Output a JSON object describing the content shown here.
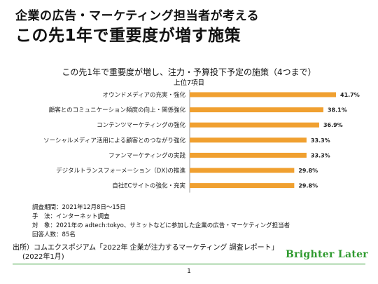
{
  "heading": {
    "line1": "企業の広告・マーケティング担当者が考える",
    "line2": "この先1年で重要度が増す施策"
  },
  "chart_data": {
    "type": "bar",
    "orientation": "horizontal",
    "title": "この先1年で重要度が増し、注力・予算投下予定の施策（4つまで）",
    "subtitle": "上位7項目",
    "categories": [
      "オウンドメディアの充実・強化",
      "顧客とのコミュニケーション頻度の向上・関係強化",
      "コンテンツマーケティングの強化",
      "ソーシャルメディア活用による顧客とのつながり強化",
      "ファンマーケティングの実践",
      "デジタルトランスフォーメーション（DX)の推進",
      "自社ECサイトの強化・充実"
    ],
    "values": [
      41.7,
      38.1,
      36.9,
      33.3,
      33.3,
      29.8,
      29.8
    ],
    "value_labels": [
      "41.7%",
      "38.1%",
      "36.9%",
      "33.3%",
      "33.3%",
      "29.8%",
      "29.8%"
    ],
    "xlim": [
      0,
      45
    ],
    "bar_color": "#F0A030",
    "grid": false
  },
  "notes": [
    "調査期間：2021年12月8日〜15日",
    "手　法：インターネット調査",
    "対　象：2021年の adtech:tokyo、サミットなどに参加した企業の広告・マーケティング担当者",
    "回答人数：85名"
  ],
  "source": {
    "line1": "出所）コムエクスポジアム「2022年 企業が注力するマーケティング 調査レポート」",
    "line2": "(2022年1月)"
  },
  "logo": {
    "text": "Brighter Later",
    "color": "#2E9A2E"
  },
  "page_number": "1"
}
